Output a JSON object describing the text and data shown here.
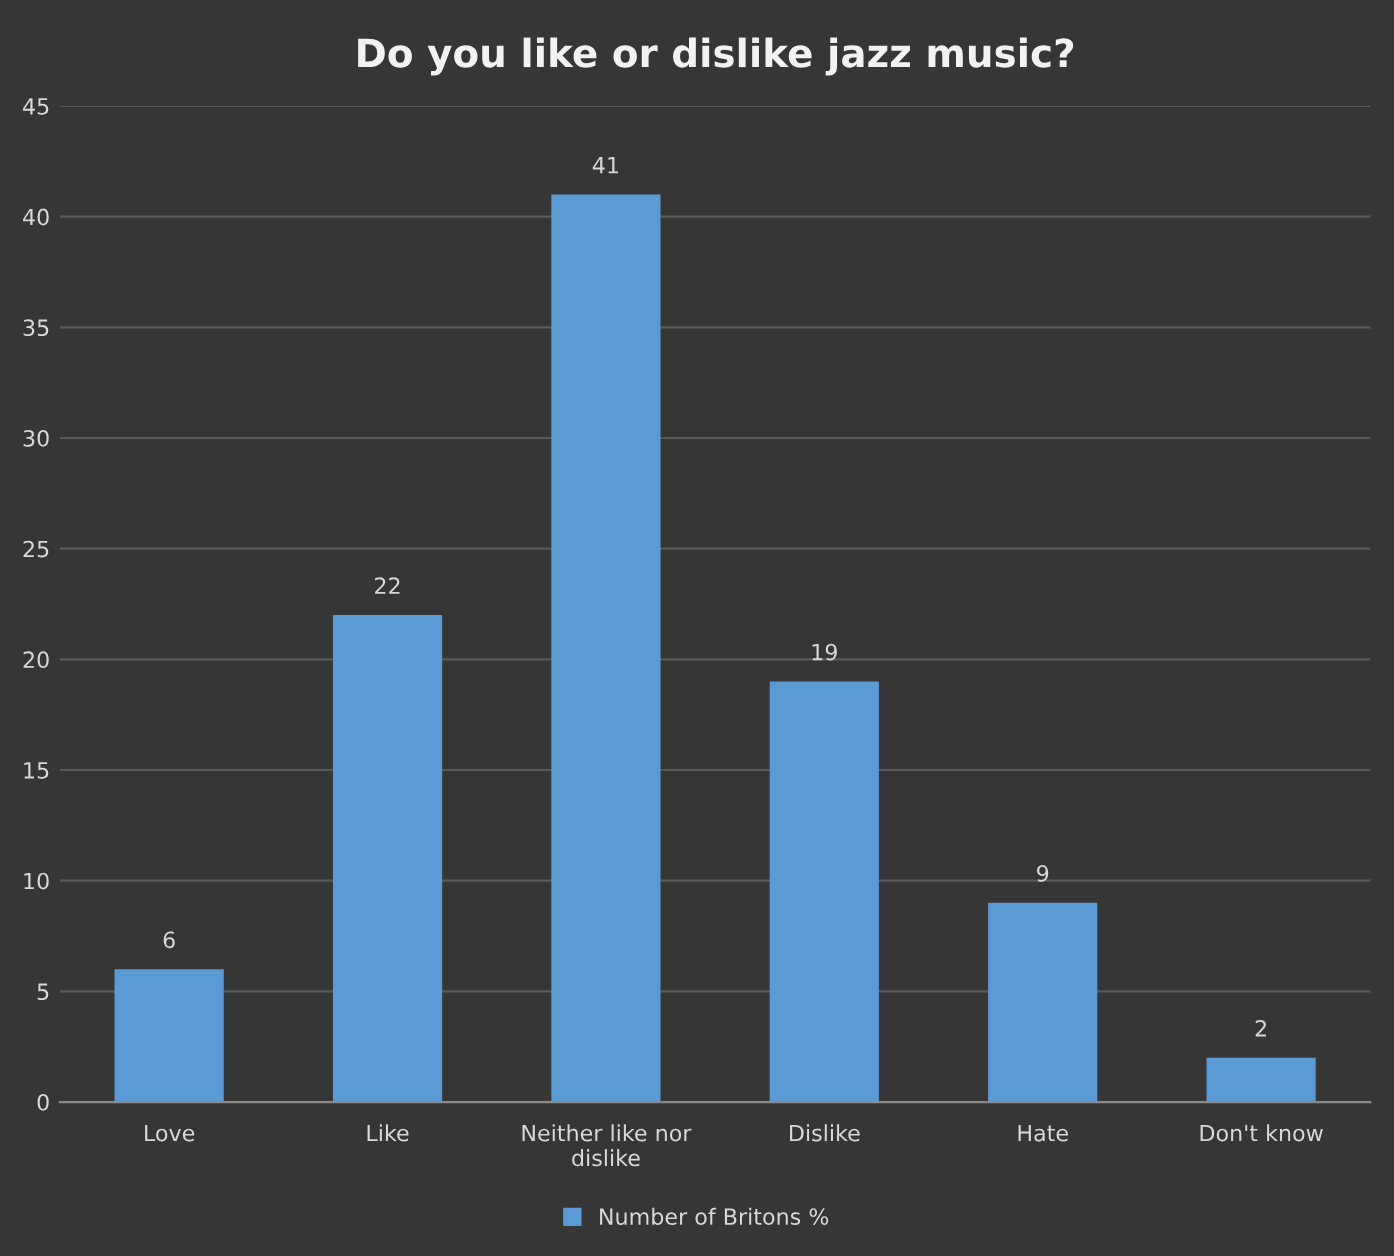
{
  "chart_data": {
    "type": "bar",
    "title": "Do you like or dislike jazz music?",
    "categories": [
      "Love",
      "Like",
      "Neither like nor dislike",
      "Dislike",
      "Hate",
      "Don't know"
    ],
    "series": [
      {
        "name": "Number of Britons %",
        "color": "#5b9bd5",
        "values": [
          6,
          22,
          41,
          19,
          9,
          2
        ]
      }
    ],
    "ylim": [
      0,
      45
    ],
    "yticks": [
      0,
      5,
      10,
      15,
      20,
      25,
      30,
      35,
      40,
      45
    ],
    "grid": "y",
    "legend": "bottom",
    "data_labels": true
  }
}
